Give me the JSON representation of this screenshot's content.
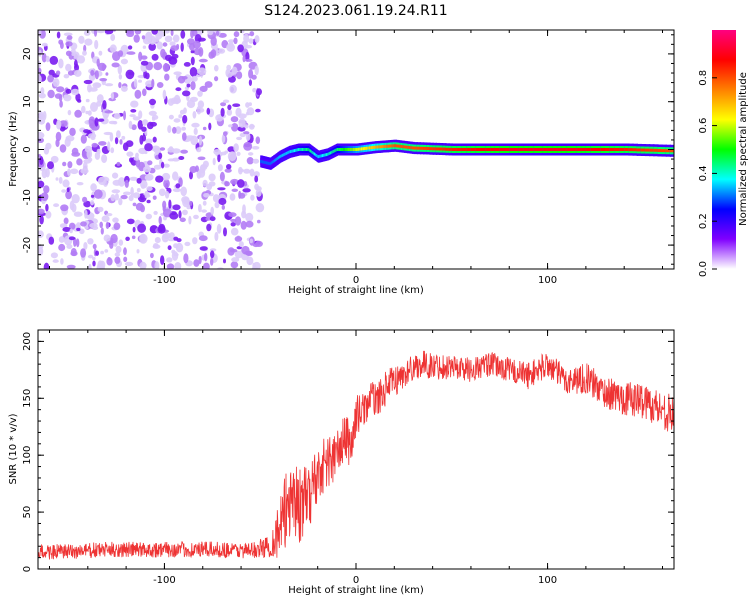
{
  "title": "S124.2023.061.19.24.R11",
  "chart_data": [
    {
      "type": "heatmap",
      "xlabel": "Height of straight line (km)",
      "ylabel": "Frequency (Hz)",
      "xlim": [
        -166,
        166
      ],
      "ylim": [
        -25,
        25
      ],
      "xticks": [
        -100,
        0,
        100
      ],
      "yticks": [
        -20,
        -10,
        0,
        10,
        20
      ],
      "colorbar": {
        "label": "Normalized spectral amplitude",
        "range": [
          0,
          1
        ],
        "ticks": [
          0.0,
          0.2,
          0.4,
          0.6,
          0.8
        ],
        "tick_labels": [
          "0.0",
          "0.2",
          "0.4",
          "0.6",
          "0.8"
        ],
        "colors": [
          "#ffffff",
          "#8000ff",
          "#0000ff",
          "#00ffff",
          "#00ff00",
          "#ffff00",
          "#ff8000",
          "#ff0000",
          "#ff0080"
        ]
      },
      "noise_region": {
        "x": [
          -166,
          -50
        ],
        "level": 0.08
      },
      "signal_track": [
        {
          "x": -50,
          "freq": -2.5,
          "amp": 0.3
        },
        {
          "x": -45,
          "freq": -3.0,
          "amp": 0.3
        },
        {
          "x": -40,
          "freq": -1.5,
          "amp": 0.35
        },
        {
          "x": -35,
          "freq": -0.5,
          "amp": 0.35
        },
        {
          "x": -30,
          "freq": 0.0,
          "amp": 0.4
        },
        {
          "x": -25,
          "freq": 0.0,
          "amp": 0.45
        },
        {
          "x": -20,
          "freq": -1.5,
          "amp": 0.35
        },
        {
          "x": -15,
          "freq": -1.0,
          "amp": 0.4
        },
        {
          "x": -10,
          "freq": 0.0,
          "amp": 0.45
        },
        {
          "x": 0,
          "freq": 0.0,
          "amp": 0.6
        },
        {
          "x": 10,
          "freq": 0.5,
          "amp": 0.7
        },
        {
          "x": 20,
          "freq": 0.8,
          "amp": 0.8
        },
        {
          "x": 30,
          "freq": 0.3,
          "amp": 0.8
        },
        {
          "x": 50,
          "freq": 0.0,
          "amp": 0.85
        },
        {
          "x": 80,
          "freq": 0.0,
          "amp": 0.9
        },
        {
          "x": 110,
          "freq": 0.0,
          "amp": 0.9
        },
        {
          "x": 140,
          "freq": 0.0,
          "amp": 0.85
        },
        {
          "x": 166,
          "freq": -0.3,
          "amp": 0.8
        }
      ]
    },
    {
      "type": "line",
      "xlabel": "Height of straight line (km)",
      "ylabel": "SNR (10 * v/v)",
      "xlim": [
        -166,
        166
      ],
      "ylim": [
        0,
        210
      ],
      "xticks": [
        -100,
        0,
        100
      ],
      "yticks": [
        0,
        50,
        100,
        150,
        200
      ],
      "series": [
        {
          "color": "#ee3333",
          "x": [
            -166,
            -150,
            -130,
            -110,
            -90,
            -70,
            -55,
            -45,
            -38,
            -34,
            -30,
            -26,
            -22,
            -18,
            -14,
            -10,
            -6,
            -2,
            0,
            4,
            8,
            12,
            16,
            20,
            25,
            30,
            35,
            40,
            50,
            60,
            70,
            80,
            90,
            100,
            110,
            120,
            130,
            140,
            150,
            160,
            166
          ],
          "y": [
            15,
            15,
            17,
            17,
            17,
            17,
            16,
            20,
            40,
            70,
            55,
            60,
            75,
            90,
            95,
            100,
            115,
            110,
            135,
            140,
            150,
            150,
            160,
            165,
            170,
            178,
            180,
            178,
            178,
            175,
            180,
            175,
            170,
            180,
            165,
            168,
            155,
            150,
            148,
            140,
            135
          ],
          "noise": [
            7,
            7,
            7,
            7,
            7,
            7,
            7,
            10,
            35,
            40,
            35,
            30,
            30,
            25,
            25,
            22,
            22,
            22,
            18,
            15,
            15,
            15,
            15,
            14,
            12,
            12,
            12,
            12,
            11,
            11,
            11,
            11,
            12,
            12,
            12,
            14,
            14,
            15,
            16,
            17,
            17
          ]
        }
      ]
    }
  ]
}
